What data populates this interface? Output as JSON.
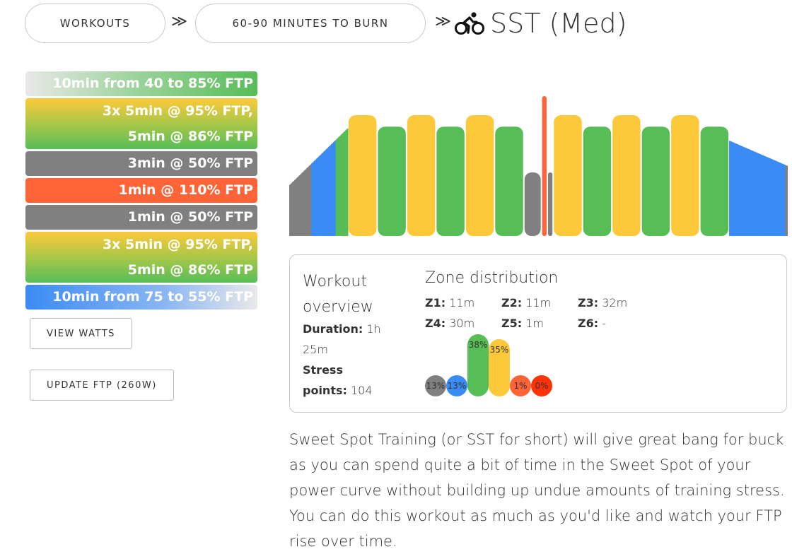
{
  "breadcrumb": {
    "items": [
      "WORKOUTS",
      "60-90 MINUTES TO BURN"
    ],
    "separator": "≫",
    "title": "SST (Med)",
    "title_icon": "cyclist-icon"
  },
  "steps": [
    {
      "lines": [
        "10min from 40 to 85% FTP"
      ],
      "style": "ramp-up"
    },
    {
      "lines": [
        "3x 5min @ 95% FTP,",
        "5min @ 86% FTP"
      ],
      "style": "interval"
    },
    {
      "lines": [
        "3min @ 50% FTP"
      ],
      "style": "recovery"
    },
    {
      "lines": [
        "1min @ 110% FTP"
      ],
      "style": "hard"
    },
    {
      "lines": [
        "1min @ 50% FTP"
      ],
      "style": "recovery"
    },
    {
      "lines": [
        "3x 5min @ 95% FTP,",
        "5min @ 86% FTP"
      ],
      "style": "interval"
    },
    {
      "lines": [
        "10min from 75 to 55% FTP"
      ],
      "style": "ramp-down"
    }
  ],
  "buttons": {
    "view_watts": "VIEW WATTS",
    "update_ftp": "UPDATE FTP (260W)"
  },
  "overview": {
    "title": "Workout overview",
    "duration_label": "Duration:",
    "duration_value": "1h 25m",
    "stress_label": "Stress points:",
    "stress_value": "104"
  },
  "zones": {
    "title": "Zone distribution",
    "items": [
      {
        "label": "Z1",
        "value": "11m"
      },
      {
        "label": "Z2",
        "value": "11m"
      },
      {
        "label": "Z3",
        "value": "32m"
      },
      {
        "label": "Z4",
        "value": "30m"
      },
      {
        "label": "Z5",
        "value": "1m"
      },
      {
        "label": "Z6",
        "value": "-"
      }
    ],
    "bars": [
      {
        "pct": 13,
        "text": "13%",
        "color": "#808080"
      },
      {
        "pct": 13,
        "text": "13%",
        "color": "#3a8bf5"
      },
      {
        "pct": 38,
        "text": "38%",
        "color": "#57bd57"
      },
      {
        "pct": 35,
        "text": "35%",
        "color": "#fdc93a"
      },
      {
        "pct": 1,
        "text": "1%",
        "color": "#fe6437"
      },
      {
        "pct": 0,
        "text": "0%",
        "color": "#ff330a"
      }
    ]
  },
  "colors": {
    "z1": "#808080",
    "z2": "#3a8bf5",
    "z3": "#57bd57",
    "z4": "#fdc93a",
    "z5": "#fe6437",
    "z6": "#ff330a"
  },
  "profile": [
    {
      "type": "ramp",
      "from": 40,
      "to": 85,
      "minutes": 10
    },
    {
      "type": "block",
      "power": 95,
      "minutes": 5,
      "zone": "z4"
    },
    {
      "type": "block",
      "power": 86,
      "minutes": 5,
      "zone": "z3"
    },
    {
      "type": "block",
      "power": 95,
      "minutes": 5,
      "zone": "z4"
    },
    {
      "type": "block",
      "power": 86,
      "minutes": 5,
      "zone": "z3"
    },
    {
      "type": "block",
      "power": 95,
      "minutes": 5,
      "zone": "z4"
    },
    {
      "type": "block",
      "power": 86,
      "minutes": 5,
      "zone": "z3"
    },
    {
      "type": "block",
      "power": 50,
      "minutes": 3,
      "zone": "z1"
    },
    {
      "type": "block",
      "power": 110,
      "minutes": 1,
      "zone": "z5"
    },
    {
      "type": "block",
      "power": 50,
      "minutes": 1,
      "zone": "z1"
    },
    {
      "type": "block",
      "power": 95,
      "minutes": 5,
      "zone": "z4"
    },
    {
      "type": "block",
      "power": 86,
      "minutes": 5,
      "zone": "z3"
    },
    {
      "type": "block",
      "power": 95,
      "minutes": 5,
      "zone": "z4"
    },
    {
      "type": "block",
      "power": 86,
      "minutes": 5,
      "zone": "z3"
    },
    {
      "type": "block",
      "power": 95,
      "minutes": 5,
      "zone": "z4"
    },
    {
      "type": "block",
      "power": 86,
      "minutes": 5,
      "zone": "z3"
    },
    {
      "type": "ramp",
      "from": 75,
      "to": 55,
      "minutes": 10
    }
  ],
  "description": "Sweet Spot Training (or SST for short) will give great bang for buck as you can spend quite a bit of time in the Sweet Spot of your power curve without building up undue amounts of training stress. You can do this workout as much as you'd like and watch your FTP rise over time."
}
